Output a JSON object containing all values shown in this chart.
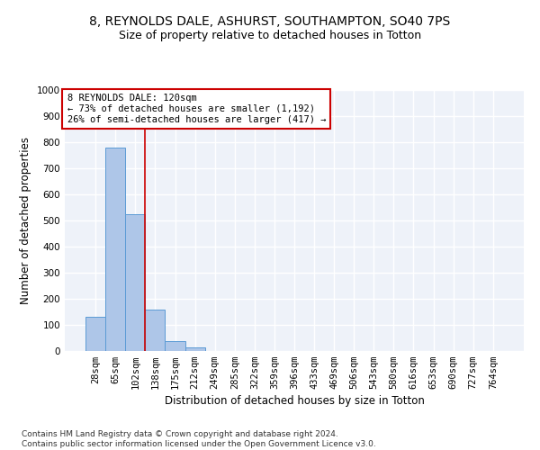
{
  "title": "8, REYNOLDS DALE, ASHURST, SOUTHAMPTON, SO40 7PS",
  "subtitle": "Size of property relative to detached houses in Totton",
  "xlabel": "Distribution of detached houses by size in Totton",
  "ylabel": "Number of detached properties",
  "bar_labels": [
    "28sqm",
    "65sqm",
    "102sqm",
    "138sqm",
    "175sqm",
    "212sqm",
    "249sqm",
    "285sqm",
    "322sqm",
    "359sqm",
    "396sqm",
    "433sqm",
    "469sqm",
    "506sqm",
    "543sqm",
    "580sqm",
    "616sqm",
    "653sqm",
    "690sqm",
    "727sqm",
    "764sqm"
  ],
  "bar_values": [
    130,
    780,
    525,
    160,
    38,
    13,
    0,
    0,
    0,
    0,
    0,
    0,
    0,
    0,
    0,
    0,
    0,
    0,
    0,
    0,
    0
  ],
  "bar_color": "#aec6e8",
  "bar_edge_color": "#5b9bd5",
  "red_line_x": 2.5,
  "annotation_lines": [
    "8 REYNOLDS DALE: 120sqm",
    "← 73% of detached houses are smaller (1,192)",
    "26% of semi-detached houses are larger (417) →"
  ],
  "annotation_box_color": "#ffffff",
  "annotation_box_edge_color": "#cc0000",
  "ylim": [
    0,
    1000
  ],
  "yticks": [
    0,
    100,
    200,
    300,
    400,
    500,
    600,
    700,
    800,
    900,
    1000
  ],
  "footnote": "Contains HM Land Registry data © Crown copyright and database right 2024.\nContains public sector information licensed under the Open Government Licence v3.0.",
  "bg_color": "#eef2f9",
  "grid_color": "#ffffff",
  "title_fontsize": 10,
  "subtitle_fontsize": 9,
  "axis_label_fontsize": 8.5,
  "tick_fontsize": 7.5,
  "annotation_fontsize": 7.5,
  "footnote_fontsize": 6.5
}
